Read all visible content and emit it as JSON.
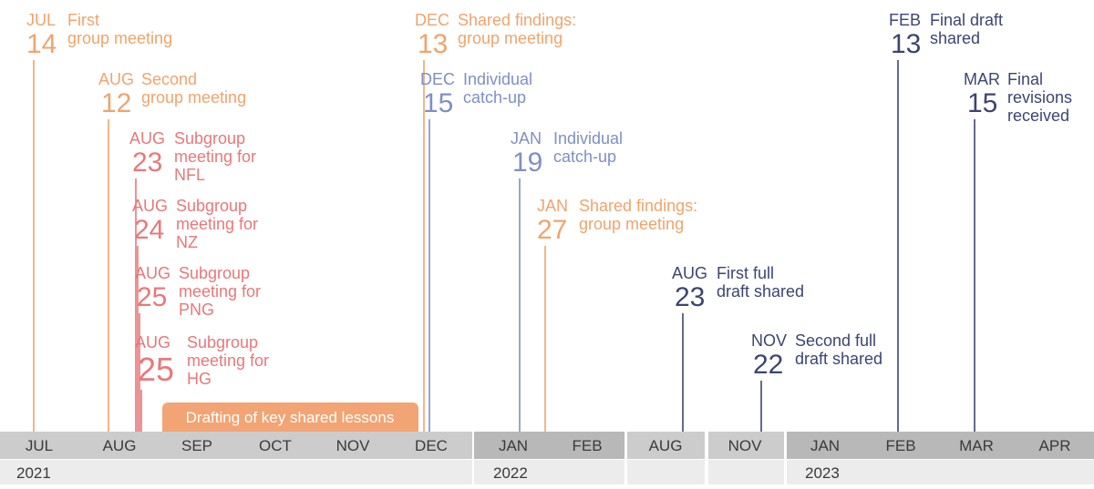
{
  "colors": {
    "orange": "#f0a46c",
    "pink": "#e8787a",
    "blue": "#7f8fc4",
    "navy": "#3b4670",
    "band": "#f2a474",
    "axis_month_bg": "#cccccc",
    "axis_month_bg_dark": "#b8b8b8",
    "axis_year_bg": "#ececec"
  },
  "months": [
    "JUL",
    "AUG",
    "SEP",
    "OCT",
    "NOV",
    "DEC",
    "JAN",
    "FEB",
    "AUG",
    "NOV",
    "JAN",
    "FEB",
    "MAR",
    "APR"
  ],
  "years": [
    "2021",
    "2022",
    "2023"
  ],
  "band": {
    "label": "Drafting of key shared lessons"
  },
  "events": [
    {
      "id": "jul14",
      "month": "JUL",
      "day": "14",
      "lines": [
        "First",
        "group meeting"
      ],
      "color": "orange"
    },
    {
      "id": "aug12",
      "month": "AUG",
      "day": "12",
      "lines": [
        "Second",
        "group meeting"
      ],
      "color": "orange"
    },
    {
      "id": "aug23",
      "month": "AUG",
      "day": "23",
      "lines": [
        "Subgroup",
        "meeting for",
        "NFL"
      ],
      "color": "pink"
    },
    {
      "id": "aug24",
      "month": "AUG",
      "day": "24",
      "lines": [
        "Subgroup",
        "meeting for",
        "NZ"
      ],
      "color": "pink"
    },
    {
      "id": "aug25a",
      "month": "AUG",
      "day": "25",
      "lines": [
        "Subgroup",
        "meeting for",
        "PNG"
      ],
      "color": "pink"
    },
    {
      "id": "aug25b",
      "month": "AUG",
      "day": "25",
      "lines": [
        "Subgroup",
        "meeting for",
        "HG"
      ],
      "color": "pink"
    },
    {
      "id": "dec13",
      "month": "DEC",
      "day": "13",
      "lines": [
        "Shared findings:",
        "group meeting"
      ],
      "color": "orange"
    },
    {
      "id": "dec15",
      "month": "DEC",
      "day": "15",
      "lines": [
        "Individual",
        "catch-up"
      ],
      "color": "blue"
    },
    {
      "id": "jan19",
      "month": "JAN",
      "day": "19",
      "lines": [
        "Individual",
        "catch-up"
      ],
      "color": "blue"
    },
    {
      "id": "jan27",
      "month": "JAN",
      "day": "27",
      "lines": [
        "Shared findings:",
        "group meeting"
      ],
      "color": "orange"
    },
    {
      "id": "aug23b",
      "month": "AUG",
      "day": "23",
      "lines": [
        "First full",
        "draft shared"
      ],
      "color": "navy"
    },
    {
      "id": "nov22",
      "month": "NOV",
      "day": "22",
      "lines": [
        "Second full",
        "draft shared"
      ],
      "color": "navy"
    },
    {
      "id": "feb13",
      "month": "FEB",
      "day": "13",
      "lines": [
        "Final draft",
        "shared"
      ],
      "color": "navy"
    },
    {
      "id": "mar15",
      "month": "MAR",
      "day": "15",
      "lines": [
        "Final",
        "revisions",
        "received"
      ],
      "color": "navy"
    }
  ]
}
